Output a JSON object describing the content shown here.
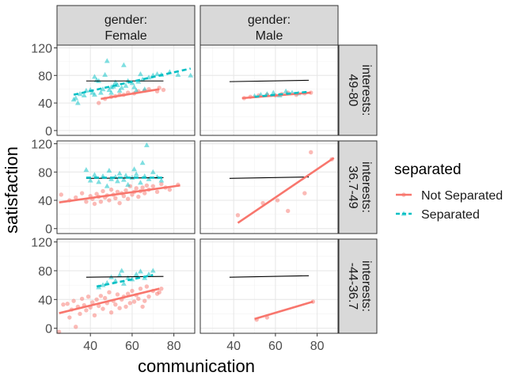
{
  "chart_data": {
    "type": "scatter",
    "xlabel": "communication",
    "ylabel": "satisfaction",
    "xlim": [
      24,
      90
    ],
    "ylim": [
      -7,
      124
    ],
    "x_ticks": [
      40,
      60,
      80
    ],
    "y_ticks": [
      0,
      40,
      80,
      120
    ],
    "grid": true,
    "legend": {
      "title": "separated",
      "position": "right",
      "entries": [
        {
          "label": "Not Separated",
          "color": "#F8766D",
          "dash": "solid"
        },
        {
          "label": "Separated",
          "color": "#00BFC4",
          "dash": "dashed"
        }
      ]
    },
    "col_facets": [
      "gender:\nFemale",
      "gender:\nMale"
    ],
    "row_facets": [
      "interests:\n49-80",
      "interests:\n36.7-49",
      "interests:\n-44-36.7"
    ],
    "panels": [
      {
        "row": 0,
        "col": 0,
        "reference_line": [
          [
            38,
            72
          ],
          [
            75,
            72
          ]
        ],
        "fit_lines": {
          "Not Separated": [
            [
              45,
              46
            ],
            [
              73,
              60
            ]
          ],
          "Separated": [
            [
              32,
              52
            ],
            [
              88,
              90
            ]
          ]
        },
        "points": {
          "Not Separated": [
            [
              44,
              40
            ],
            [
              47,
              46
            ],
            [
              50,
              49
            ],
            [
              52,
              50
            ],
            [
              54,
              52
            ],
            [
              56,
              52
            ],
            [
              58,
              55
            ],
            [
              61,
              54
            ],
            [
              63,
              57
            ],
            [
              66,
              58
            ],
            [
              68,
              60
            ],
            [
              72,
              57
            ],
            [
              73,
              62
            ],
            [
              75,
              59
            ]
          ],
          "Separated": [
            [
              32,
              45
            ],
            [
              33,
              47
            ],
            [
              34,
              40
            ],
            [
              35,
              53
            ],
            [
              37,
              51
            ],
            [
              38,
              58
            ],
            [
              40,
              59
            ],
            [
              41,
              55
            ],
            [
              42,
              52
            ],
            [
              42,
              78
            ],
            [
              43,
              73
            ],
            [
              44,
              72
            ],
            [
              45,
              55
            ],
            [
              46,
              60
            ],
            [
              47,
              81
            ],
            [
              48,
              101
            ],
            [
              49,
              59
            ],
            [
              50,
              63
            ],
            [
              50,
              55
            ],
            [
              51,
              64
            ],
            [
              52,
              70
            ],
            [
              53,
              66
            ],
            [
              54,
              58
            ],
            [
              55,
              62
            ],
            [
              56,
              95
            ],
            [
              57,
              65
            ],
            [
              58,
              72
            ],
            [
              60,
              69
            ],
            [
              61,
              63
            ],
            [
              62,
              58
            ],
            [
              63,
              71
            ],
            [
              64,
              82
            ],
            [
              65,
              74
            ],
            [
              66,
              60
            ],
            [
              68,
              77
            ],
            [
              70,
              80
            ],
            [
              72,
              82
            ],
            [
              74,
              81
            ],
            [
              78,
              85
            ],
            [
              82,
              81
            ],
            [
              88,
              80
            ]
          ]
        }
      },
      {
        "row": 0,
        "col": 1,
        "reference_line": [
          [
            38,
            71
          ],
          [
            76,
            73
          ]
        ],
        "fit_lines": {
          "Not Separated": [
            [
              44,
              47
            ],
            [
              77,
              55
            ]
          ],
          "Separated": [
            [
              50,
              49
            ],
            [
              75,
              56
            ]
          ]
        },
        "points": {
          "Not Separated": [
            [
              45,
              47
            ],
            [
              48,
              49
            ],
            [
              52,
              51
            ],
            [
              56,
              52
            ],
            [
              60,
              51
            ],
            [
              63,
              53
            ],
            [
              66,
              55
            ],
            [
              70,
              52
            ],
            [
              74,
              54
            ],
            [
              77,
              55
            ]
          ],
          "Separated": [
            [
              50,
              50
            ],
            [
              53,
              52
            ],
            [
              56,
              53
            ],
            [
              59,
              55
            ],
            [
              62,
              51
            ],
            [
              65,
              57
            ],
            [
              68,
              55
            ],
            [
              71,
              54
            ]
          ]
        }
      },
      {
        "row": 1,
        "col": 0,
        "reference_line": [
          [
            38,
            71
          ],
          [
            75,
            72
          ]
        ],
        "fit_lines": {
          "Not Separated": [
            [
              25,
              37
            ],
            [
              83,
              61
            ]
          ],
          "Separated": [
            [
              38,
              72
            ],
            [
              75,
              72
            ]
          ]
        },
        "points": {
          "Not Separated": [
            [
              26,
              48
            ],
            [
              30,
              40
            ],
            [
              33,
              44
            ],
            [
              36,
              50
            ],
            [
              38,
              38
            ],
            [
              40,
              46
            ],
            [
              41,
              42
            ],
            [
              42,
              35
            ],
            [
              43,
              49
            ],
            [
              44,
              45
            ],
            [
              45,
              38
            ],
            [
              46,
              53
            ],
            [
              47,
              44
            ],
            [
              48,
              47
            ],
            [
              49,
              40
            ],
            [
              50,
              55
            ],
            [
              51,
              48
            ],
            [
              52,
              43
            ],
            [
              53,
              52
            ],
            [
              54,
              36
            ],
            [
              55,
              50
            ],
            [
              56,
              46
            ],
            [
              57,
              54
            ],
            [
              58,
              42
            ],
            [
              59,
              60
            ],
            [
              60,
              48
            ],
            [
              61,
              52
            ],
            [
              62,
              57
            ],
            [
              63,
              45
            ],
            [
              64,
              53
            ],
            [
              65,
              58
            ],
            [
              66,
              50
            ],
            [
              67,
              61
            ],
            [
              68,
              55
            ],
            [
              70,
              60
            ],
            [
              72,
              52
            ],
            [
              74,
              63
            ],
            [
              76,
              58
            ],
            [
              78,
              55
            ],
            [
              82,
              62
            ]
          ],
          "Separated": [
            [
              38,
              83
            ],
            [
              40,
              68
            ],
            [
              42,
              76
            ],
            [
              44,
              66
            ],
            [
              46,
              74
            ],
            [
              48,
              60
            ],
            [
              49,
              82
            ],
            [
              50,
              70
            ],
            [
              52,
              73
            ],
            [
              53,
              67
            ],
            [
              54,
              78
            ],
            [
              56,
              69
            ],
            [
              57,
              75
            ],
            [
              58,
              62
            ],
            [
              60,
              72
            ],
            [
              61,
              84
            ],
            [
              62,
              77
            ],
            [
              64,
              65
            ],
            [
              65,
              93
            ],
            [
              66,
              74
            ],
            [
              67,
              118
            ],
            [
              68,
              70
            ],
            [
              70,
              80
            ],
            [
              72,
              73
            ],
            [
              74,
              68
            ]
          ]
        }
      },
      {
        "row": 1,
        "col": 1,
        "reference_line": [
          [
            38,
            71
          ],
          [
            76,
            73
          ]
        ],
        "fit_lines": {
          "Not Separated": [
            [
              42,
              8
            ],
            [
              88,
              100
            ]
          ]
        },
        "points": {
          "Not Separated": [
            [
              42,
              19
            ],
            [
              54,
              36
            ],
            [
              61,
              40
            ],
            [
              66,
              25
            ],
            [
              74,
              50
            ],
            [
              77,
              108
            ],
            [
              87,
              98
            ]
          ],
          "Separated": []
        }
      },
      {
        "row": 2,
        "col": 0,
        "reference_line": [
          [
            38,
            71
          ],
          [
            75,
            72
          ]
        ],
        "fit_lines": {
          "Not Separated": [
            [
              25,
              21
            ],
            [
              73,
              55
            ]
          ],
          "Separated": [
            [
              43,
              58
            ],
            [
              70,
              74
            ]
          ]
        },
        "points": {
          "Not Separated": [
            [
              25,
              -5
            ],
            [
              27,
              33
            ],
            [
              29,
              34
            ],
            [
              30,
              15
            ],
            [
              31,
              26
            ],
            [
              32,
              38
            ],
            [
              33,
              2
            ],
            [
              34,
              30
            ],
            [
              35,
              20
            ],
            [
              36,
              41
            ],
            [
              37,
              32
            ],
            [
              38,
              25
            ],
            [
              39,
              44
            ],
            [
              40,
              29
            ],
            [
              41,
              36
            ],
            [
              42,
              18
            ],
            [
              43,
              40
            ],
            [
              44,
              31
            ],
            [
              45,
              45
            ],
            [
              46,
              27
            ],
            [
              47,
              42
            ],
            [
              48,
              35
            ],
            [
              49,
              50
            ],
            [
              50,
              22
            ],
            [
              51,
              38
            ],
            [
              52,
              33
            ],
            [
              53,
              47
            ],
            [
              54,
              28
            ],
            [
              55,
              40
            ],
            [
              56,
              44
            ],
            [
              57,
              30
            ],
            [
              58,
              48
            ],
            [
              59,
              35
            ],
            [
              60,
              52
            ],
            [
              61,
              37
            ],
            [
              62,
              46
            ],
            [
              63,
              41
            ],
            [
              64,
              55
            ],
            [
              65,
              30
            ],
            [
              66,
              38
            ],
            [
              67,
              58
            ],
            [
              68,
              44
            ],
            [
              70,
              52
            ],
            [
              72,
              48
            ],
            [
              73,
              50
            ],
            [
              74,
              55
            ]
          ],
          "Separated": [
            [
              44,
              57
            ],
            [
              46,
              60
            ],
            [
              48,
              63
            ],
            [
              50,
              71
            ],
            [
              52,
              66
            ],
            [
              54,
              74
            ],
            [
              55,
              80
            ],
            [
              56,
              62
            ],
            [
              58,
              70
            ],
            [
              60,
              68
            ],
            [
              62,
              75
            ],
            [
              64,
              79
            ],
            [
              66,
              70
            ],
            [
              68,
              75
            ],
            [
              70,
              80
            ]
          ]
        }
      },
      {
        "row": 2,
        "col": 1,
        "reference_line": [
          [
            38,
            71
          ],
          [
            76,
            73
          ]
        ],
        "fit_lines": {
          "Not Separated": [
            [
              50,
              13
            ],
            [
              78,
              37
            ]
          ]
        },
        "points": {
          "Not Separated": [
            [
              51,
              12
            ],
            [
              56,
              15
            ],
            [
              78,
              37
            ]
          ],
          "Separated": []
        }
      }
    ]
  }
}
